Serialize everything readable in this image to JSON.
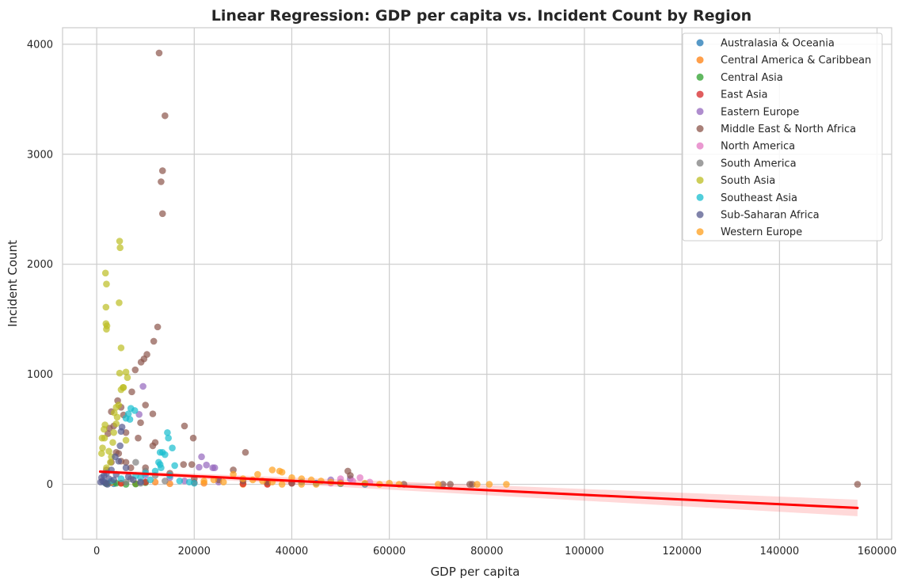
{
  "chart_data": {
    "type": "scatter",
    "title": "Linear Regression: GDP per capita vs. Incident Count by Region",
    "xlabel": "GDP per capita",
    "ylabel": "Incident Count",
    "xlim": [
      -7000,
      163000
    ],
    "ylim": [
      -500,
      4150
    ],
    "xticks": [
      0,
      20000,
      40000,
      60000,
      80000,
      100000,
      120000,
      140000,
      160000
    ],
    "yticks": [
      0,
      1000,
      2000,
      3000,
      4000
    ],
    "grid": true,
    "legend_position": "top-right",
    "series": [
      {
        "name": "Australasia & Oceania",
        "color": "#1f77b4",
        "points": [
          [
            1500,
            20
          ],
          [
            2500,
            10
          ],
          [
            3500,
            5
          ],
          [
            45000,
            10
          ],
          [
            50000,
            5
          ],
          [
            42000,
            20
          ],
          [
            55000,
            0
          ]
        ]
      },
      {
        "name": "Central America & Caribbean",
        "color": "#ff7f0e",
        "points": [
          [
            5000,
            10
          ],
          [
            8000,
            5
          ],
          [
            12000,
            20
          ],
          [
            3000,
            15
          ],
          [
            15000,
            5
          ],
          [
            22000,
            10
          ],
          [
            30000,
            0
          ],
          [
            35000,
            5
          ]
        ]
      },
      {
        "name": "Central Asia",
        "color": "#2ca02c",
        "points": [
          [
            2000,
            5
          ],
          [
            4000,
            10
          ],
          [
            8000,
            2
          ],
          [
            10000,
            15
          ],
          [
            6000,
            0
          ]
        ]
      },
      {
        "name": "East Asia",
        "color": "#d62728",
        "points": [
          [
            5000,
            10
          ],
          [
            10000,
            20
          ],
          [
            30000,
            5
          ],
          [
            40000,
            10
          ],
          [
            20000,
            15
          ],
          [
            35000,
            0
          ]
        ]
      },
      {
        "name": "Eastern Europe",
        "color": "#9467bd",
        "points": [
          [
            9500,
            890
          ],
          [
            8700,
            635
          ],
          [
            21500,
            250
          ],
          [
            22500,
            175
          ],
          [
            23800,
            150
          ],
          [
            24200,
            150
          ],
          [
            21000,
            155
          ],
          [
            10000,
            80
          ],
          [
            15000,
            60
          ],
          [
            18000,
            30
          ],
          [
            25000,
            20
          ],
          [
            48000,
            40
          ],
          [
            50000,
            20
          ],
          [
            52000,
            50
          ]
        ]
      },
      {
        "name": "Middle East & North Africa",
        "color": "#8c564b",
        "points": [
          [
            12800,
            3920
          ],
          [
            14000,
            3350
          ],
          [
            13500,
            2850
          ],
          [
            13200,
            2750
          ],
          [
            13500,
            2460
          ],
          [
            12500,
            1430
          ],
          [
            11700,
            1300
          ],
          [
            10300,
            1180
          ],
          [
            9700,
            1140
          ],
          [
            9100,
            1110
          ],
          [
            7900,
            1040
          ],
          [
            7200,
            840
          ],
          [
            10000,
            720
          ],
          [
            11500,
            640
          ],
          [
            9000,
            560
          ],
          [
            18000,
            530
          ],
          [
            19800,
            420
          ],
          [
            30500,
            290
          ],
          [
            3000,
            660
          ],
          [
            4300,
            760
          ],
          [
            5000,
            700
          ],
          [
            3500,
            530
          ],
          [
            2600,
            510
          ],
          [
            2300,
            460
          ],
          [
            5500,
            630
          ],
          [
            11500,
            350
          ],
          [
            12000,
            380
          ],
          [
            6000,
            470
          ],
          [
            8500,
            420
          ],
          [
            4000,
            290
          ],
          [
            5000,
            210
          ],
          [
            7000,
            150
          ],
          [
            2000,
            130
          ],
          [
            4500,
            280
          ],
          [
            17800,
            180
          ],
          [
            19500,
            180
          ],
          [
            28000,
            130
          ],
          [
            51500,
            120
          ],
          [
            52000,
            80
          ],
          [
            63000,
            0
          ],
          [
            71000,
            0
          ],
          [
            72500,
            0
          ],
          [
            76500,
            0
          ],
          [
            77000,
            0
          ],
          [
            156000,
            0
          ],
          [
            20000,
            50
          ],
          [
            25000,
            40
          ],
          [
            30000,
            30
          ],
          [
            35000,
            20
          ],
          [
            40000,
            10
          ],
          [
            15000,
            100
          ],
          [
            10000,
            150
          ],
          [
            6000,
            200
          ],
          [
            3000,
            200
          ]
        ]
      },
      {
        "name": "North America",
        "color": "#e377c2",
        "points": [
          [
            50000,
            50
          ],
          [
            54000,
            60
          ],
          [
            52500,
            30
          ],
          [
            56000,
            20
          ],
          [
            48000,
            10
          ]
        ]
      },
      {
        "name": "South America",
        "color": "#7f7f7f",
        "points": [
          [
            8000,
            200
          ],
          [
            10000,
            120
          ],
          [
            12000,
            80
          ],
          [
            7000,
            50
          ],
          [
            14000,
            30
          ],
          [
            9000,
            10
          ],
          [
            6000,
            20
          ]
        ]
      },
      {
        "name": "South Asia",
        "color": "#bcbd22",
        "points": [
          [
            4700,
            2210
          ],
          [
            4800,
            2150
          ],
          [
            1800,
            1920
          ],
          [
            2000,
            1820
          ],
          [
            1900,
            1610
          ],
          [
            1900,
            1460
          ],
          [
            2100,
            1440
          ],
          [
            2000,
            1410
          ],
          [
            4600,
            1650
          ],
          [
            5000,
            1240
          ],
          [
            4700,
            1010
          ],
          [
            6000,
            1020
          ],
          [
            6300,
            970
          ],
          [
            5400,
            880
          ],
          [
            5000,
            860
          ],
          [
            1100,
            420
          ],
          [
            1600,
            420
          ],
          [
            1700,
            540
          ],
          [
            1500,
            500
          ],
          [
            1200,
            330
          ],
          [
            1000,
            280
          ],
          [
            4000,
            700
          ],
          [
            3600,
            650
          ],
          [
            4200,
            610
          ],
          [
            3500,
            470
          ],
          [
            4000,
            550
          ],
          [
            4500,
            720
          ],
          [
            5500,
            880
          ],
          [
            3300,
            380
          ],
          [
            2500,
            300
          ],
          [
            3000,
            250
          ],
          [
            2800,
            200
          ],
          [
            6000,
            400
          ],
          [
            2000,
            150
          ]
        ]
      },
      {
        "name": "Southeast Asia",
        "color": "#17becf",
        "points": [
          [
            14500,
            470
          ],
          [
            14700,
            420
          ],
          [
            7000,
            690
          ],
          [
            7800,
            670
          ],
          [
            6500,
            640
          ],
          [
            6800,
            590
          ],
          [
            6000,
            600
          ],
          [
            15500,
            330
          ],
          [
            13000,
            290
          ],
          [
            13500,
            290
          ],
          [
            14000,
            270
          ],
          [
            12700,
            200
          ],
          [
            13000,
            180
          ],
          [
            13200,
            150
          ],
          [
            16000,
            170
          ],
          [
            12000,
            120
          ],
          [
            10000,
            100
          ],
          [
            8000,
            80
          ],
          [
            5000,
            50
          ],
          [
            3000,
            30
          ],
          [
            9000,
            60
          ],
          [
            11000,
            40
          ],
          [
            15000,
            80
          ],
          [
            17000,
            30
          ],
          [
            19000,
            20
          ],
          [
            20000,
            10
          ]
        ]
      },
      {
        "name": "Sub-Saharan Africa",
        "color": "#555a8e",
        "points": [
          [
            5000,
            480
          ],
          [
            5200,
            520
          ],
          [
            4800,
            350
          ],
          [
            3800,
            250
          ],
          [
            4500,
            210
          ],
          [
            6000,
            150
          ],
          [
            3000,
            130
          ],
          [
            2000,
            100
          ],
          [
            1500,
            80
          ],
          [
            1000,
            60
          ],
          [
            2500,
            50
          ],
          [
            3500,
            40
          ],
          [
            1200,
            30
          ],
          [
            800,
            20
          ],
          [
            1800,
            10
          ],
          [
            2200,
            0
          ],
          [
            4000,
            90
          ],
          [
            6500,
            70
          ],
          [
            7500,
            40
          ],
          [
            9000,
            20
          ]
        ]
      },
      {
        "name": "Western Europe",
        "color": "#ff9f1c",
        "points": [
          [
            36000,
            130
          ],
          [
            37500,
            120
          ],
          [
            38000,
            110
          ],
          [
            28000,
            90
          ],
          [
            33000,
            90
          ],
          [
            40000,
            60
          ],
          [
            42000,
            50
          ],
          [
            44000,
            40
          ],
          [
            46000,
            30
          ],
          [
            48000,
            20
          ],
          [
            50000,
            10
          ],
          [
            38000,
            0
          ],
          [
            42000,
            0
          ],
          [
            45000,
            0
          ],
          [
            55000,
            10
          ],
          [
            58000,
            0
          ],
          [
            60000,
            10
          ],
          [
            62000,
            0
          ],
          [
            70000,
            0
          ],
          [
            78000,
            0
          ],
          [
            80500,
            0
          ],
          [
            84000,
            0
          ],
          [
            30000,
            50
          ],
          [
            32000,
            40
          ],
          [
            34000,
            30
          ],
          [
            36000,
            20
          ],
          [
            22000,
            30
          ],
          [
            24000,
            40
          ],
          [
            26000,
            20
          ]
        ]
      }
    ],
    "regression": {
      "color": "#ff0000",
      "x": [
        700,
        156000
      ],
      "y": [
        115,
        -215
      ],
      "ci_halfwidth": [
        15,
        75
      ]
    }
  }
}
